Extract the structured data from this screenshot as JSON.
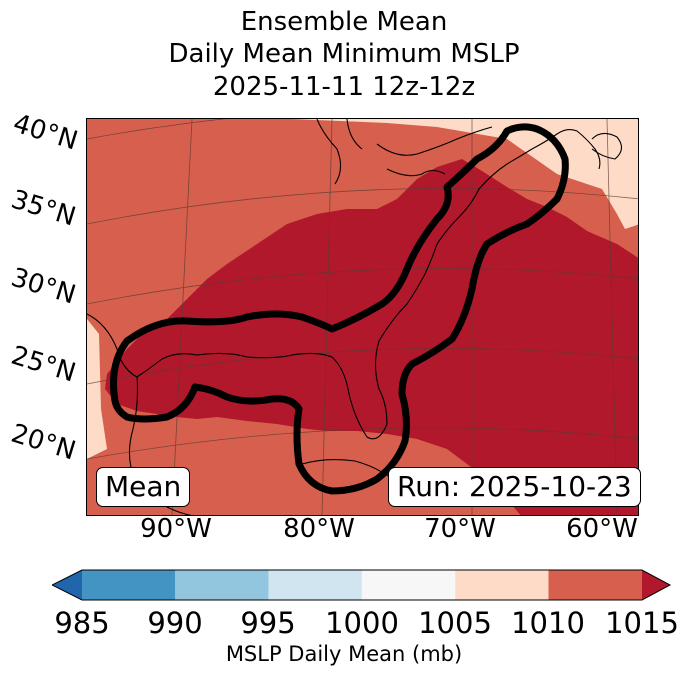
{
  "title": {
    "line1": "Ensemble Mean",
    "line2": "Daily Mean Minimum MSLP",
    "line3": "2025-11-11 12z-12z"
  },
  "lat_labels": [
    "40°N",
    "35°N",
    "30°N",
    "25°N",
    "20°N"
  ],
  "lon_labels": [
    "90°W",
    "80°W",
    "70°W",
    "60°W"
  ],
  "tags": {
    "mean": "Mean",
    "run": "Run: 2025-10-23"
  },
  "colorbar": {
    "ticks": [
      "985",
      "990",
      "995",
      "1000",
      "1005",
      "1010",
      "1015"
    ],
    "label": "MSLP Daily Mean (mb)",
    "colors": [
      "#2166ac",
      "#4393c3",
      "#92c5de",
      "#d1e5f0",
      "#f7f7f7",
      "#fddbc7",
      "#d6604d",
      "#b2182b"
    ]
  },
  "map_colors": {
    "bin_1005_1010": "#fddbc7",
    "bin_1010_1015": "#d6604d",
    "bin_above_1015": "#b2182b"
  }
}
